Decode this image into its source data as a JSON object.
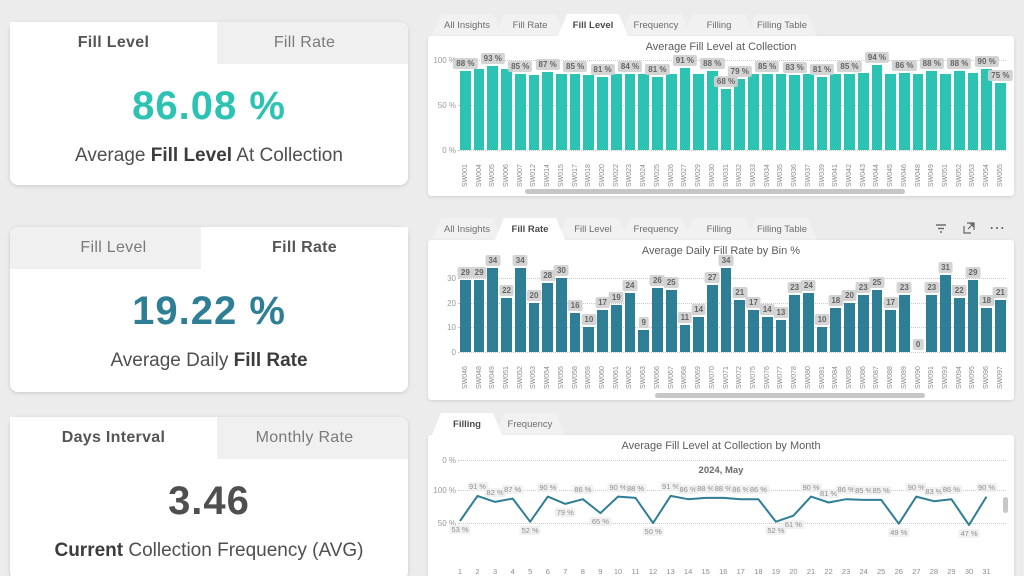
{
  "accent_colors": {
    "teal_bright": "#2cc3b2",
    "teal_dark": "#2e7e96",
    "gray_value": "#4f4f4f"
  },
  "kpi_cards": [
    {
      "tabs": [
        {
          "label": "Fill Level",
          "active": true
        },
        {
          "label": "Fill Rate",
          "active": false
        }
      ],
      "value": "86.08 %",
      "value_color": "#2cc3b2",
      "subtitle_parts": [
        {
          "text": "Average ",
          "bold": false
        },
        {
          "text": "Fill Level",
          "bold": true
        },
        {
          "text": " At Collection",
          "bold": false
        }
      ]
    },
    {
      "tabs": [
        {
          "label": "Fill Level",
          "active": false
        },
        {
          "label": "Fill Rate",
          "active": true
        }
      ],
      "value": "19.22 %",
      "value_color": "#2e7e96",
      "subtitle_parts": [
        {
          "text": "Average Daily ",
          "bold": false
        },
        {
          "text": "Fill Rate",
          "bold": true
        }
      ]
    },
    {
      "tabs": [
        {
          "label": "Days Interval",
          "active": true
        },
        {
          "label": "Monthly Rate",
          "active": false
        }
      ],
      "value": "3.46",
      "value_color": "#4f4f4f",
      "subtitle_parts": [
        {
          "text": "Current",
          "bold": true
        },
        {
          "text": " Collection Frequency (AVG)",
          "bold": false
        }
      ]
    }
  ],
  "panels": [
    {
      "tabs": [
        {
          "label": "All Insights",
          "active": false
        },
        {
          "label": "Fill Rate",
          "active": false
        },
        {
          "label": "Fill Level",
          "active": true
        },
        {
          "label": "Frequency",
          "active": false
        },
        {
          "label": "Filling",
          "active": false
        },
        {
          "label": "Filling Table",
          "active": false
        }
      ],
      "title": "Average Fill Level at Collection",
      "icons": []
    },
    {
      "tabs": [
        {
          "label": "All Insights",
          "active": false
        },
        {
          "label": "Fill Rate",
          "active": true
        },
        {
          "label": "Fill Level",
          "active": false
        },
        {
          "label": "Frequency",
          "active": false
        },
        {
          "label": "Filling",
          "active": false
        },
        {
          "label": "Filling Table",
          "active": false
        }
      ],
      "title": "Average Daily Fill Rate by Bin %",
      "icons": [
        "filter-icon",
        "focus-mode-icon",
        "more-options-icon"
      ]
    },
    {
      "tabs": [
        {
          "label": "Filling",
          "active": true
        },
        {
          "label": "Frequency",
          "active": false
        }
      ],
      "title": "Average Fill Level at Collection by Month",
      "icons": []
    }
  ],
  "chart_data": [
    {
      "type": "bar",
      "title": "Average Fill Level at Collection",
      "xlabel": "",
      "ylabel": "",
      "ylim": [
        0,
        100
      ],
      "y_ticks": [
        "100 %",
        "50 %",
        "0 %"
      ],
      "bar_color": "#2cc3b2",
      "categories": [
        "SW001",
        "SW004",
        "SW005",
        "SW006",
        "SW007",
        "SW012",
        "SW014",
        "SW015",
        "SW017",
        "SW018",
        "SW020",
        "SW022",
        "SW023",
        "SW024",
        "SW025",
        "SW026",
        "SW027",
        "SW029",
        "SW030",
        "SW031",
        "SW032",
        "SW033",
        "SW034",
        "SW035",
        "SW036",
        "SW037",
        "SW039",
        "SW041",
        "SW042",
        "SW043",
        "SW044",
        "SW045",
        "SW046",
        "SW048",
        "SW049",
        "SW051",
        "SW052",
        "SW053",
        "SW054",
        "SW055"
      ],
      "values": [
        88,
        90,
        93,
        90,
        85,
        83,
        87,
        84,
        85,
        83,
        81,
        85,
        84,
        85,
        81,
        84,
        91,
        85,
        88,
        68,
        79,
        84,
        85,
        84,
        83,
        85,
        81,
        84,
        85,
        86,
        94,
        84,
        86,
        84,
        88,
        84,
        88,
        86,
        90,
        75
      ],
      "labels": [
        "88 %",
        null,
        "93 %",
        null,
        "85 %",
        null,
        "87 %",
        null,
        "85 %",
        null,
        "81 %",
        null,
        "84 %",
        null,
        "81 %",
        null,
        "91 %",
        null,
        "88 %",
        "68 %",
        "79 %",
        null,
        "85 %",
        null,
        "83 %",
        null,
        "81 %",
        null,
        "85 %",
        null,
        "94 %",
        null,
        "86 %",
        null,
        "88 %",
        null,
        "88 %",
        null,
        "90 %",
        "75 %"
      ]
    },
    {
      "type": "bar",
      "title": "Average Daily Fill Rate by Bin %",
      "xlabel": "",
      "ylabel": "",
      "ylim": [
        0,
        38
      ],
      "y_ticks": [
        "30",
        "20",
        "10",
        "0"
      ],
      "bar_color": "#2e7e96",
      "categories": [
        "SW046",
        "SW048",
        "SW049",
        "SW051",
        "SW052",
        "SW053",
        "SW054",
        "SW055",
        "SW058",
        "SW059",
        "SW060",
        "SW061",
        "SW062",
        "SW063",
        "SW066",
        "SW067",
        "SW068",
        "SW069",
        "SW070",
        "SW071",
        "SW072",
        "SW075",
        "SW076",
        "SW077",
        "SW078",
        "SW080",
        "SW081",
        "SW084",
        "SW085",
        "SW086",
        "SW087",
        "SW088",
        "SW089",
        "SW090",
        "SW091",
        "SW093",
        "SW094",
        "SW095",
        "SW096",
        "SW097"
      ],
      "values": [
        29,
        29,
        34,
        22,
        34,
        20,
        28,
        30,
        16,
        10,
        17,
        19,
        24,
        9,
        26,
        25,
        11,
        14,
        27,
        34,
        21,
        17,
        14,
        13,
        23,
        24,
        10,
        18,
        20,
        23,
        25,
        17,
        23,
        0,
        23,
        31,
        22,
        29,
        18,
        21
      ]
    },
    {
      "type": "line",
      "title": "Average Fill Level at Collection by Month",
      "group_label": "2024, May",
      "xlabel": "",
      "ylabel": "",
      "ylim": [
        0,
        100
      ],
      "y_ticks": [
        "0 %",
        "100 %",
        "50 %"
      ],
      "line_color": "#2e7e96",
      "x": [
        1,
        2,
        3,
        4,
        5,
        6,
        7,
        8,
        9,
        10,
        11,
        12,
        13,
        14,
        15,
        16,
        17,
        18,
        19,
        20,
        21,
        22,
        23,
        24,
        25,
        26,
        27,
        28,
        29,
        30,
        31
      ],
      "values": [
        53,
        91,
        82,
        87,
        52,
        90,
        79,
        86,
        65,
        90,
        88,
        50,
        91,
        86,
        88,
        88,
        86,
        86,
        52,
        61,
        90,
        81,
        86,
        85,
        85,
        49,
        90,
        83,
        86,
        47,
        90
      ]
    }
  ]
}
